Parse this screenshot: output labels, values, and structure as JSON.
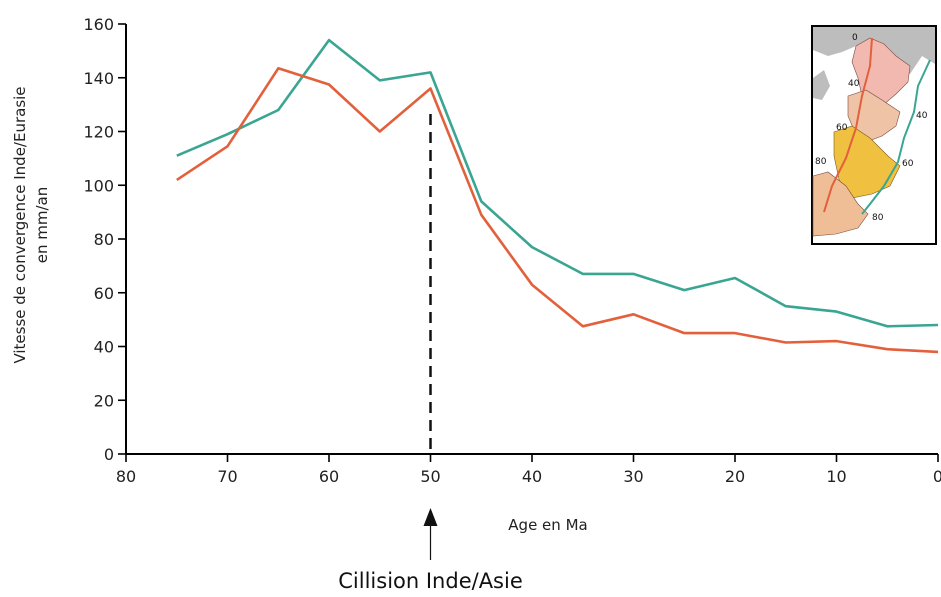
{
  "chart_data": {
    "type": "line",
    "title": "",
    "xlabel": "Age en Ma",
    "ylabel": [
      "Vitesse de convergence Inde/Eurasie",
      "en mm/an"
    ],
    "xlim": [
      80,
      0
    ],
    "ylim": [
      0,
      160
    ],
    "x_ticks": [
      "80",
      "70",
      "60",
      "50",
      "40",
      "30",
      "20",
      "10",
      "0"
    ],
    "y_ticks": [
      "0",
      "20",
      "40",
      "60",
      "80",
      "100",
      "120",
      "140",
      "160"
    ],
    "grid": false,
    "series": [
      {
        "color": "#3aa592",
        "points": [
          [
            75,
            111
          ],
          [
            70,
            119
          ],
          [
            65,
            128
          ],
          [
            60,
            154
          ],
          [
            55,
            139
          ],
          [
            50,
            142
          ],
          [
            45,
            94
          ],
          [
            40,
            77
          ],
          [
            35,
            67
          ],
          [
            30,
            67
          ],
          [
            25,
            61
          ],
          [
            20,
            65.5
          ],
          [
            15,
            55
          ],
          [
            10,
            53
          ],
          [
            5,
            47.5
          ],
          [
            0,
            48
          ]
        ]
      },
      {
        "color": "#e3603c",
        "points": [
          [
            75,
            102
          ],
          [
            70,
            114.5
          ],
          [
            65,
            143.5
          ],
          [
            60,
            137.5
          ],
          [
            55,
            120
          ],
          [
            50,
            136
          ],
          [
            45,
            89
          ],
          [
            40,
            63
          ],
          [
            35,
            47.5
          ],
          [
            30,
            52
          ],
          [
            25,
            45
          ],
          [
            20,
            45
          ],
          [
            15,
            41.5
          ],
          [
            10,
            42
          ],
          [
            5,
            39
          ],
          [
            0,
            38
          ]
        ]
      }
    ],
    "annotations": [
      {
        "x": 50,
        "style": "dashed-vertical-line",
        "text": "Cillision Inde/Asie"
      }
    ]
  },
  "inset_map": {
    "labels_red": [
      "0",
      "40",
      "60",
      "80"
    ],
    "labels_green": [
      "40",
      "60",
      "80"
    ]
  }
}
